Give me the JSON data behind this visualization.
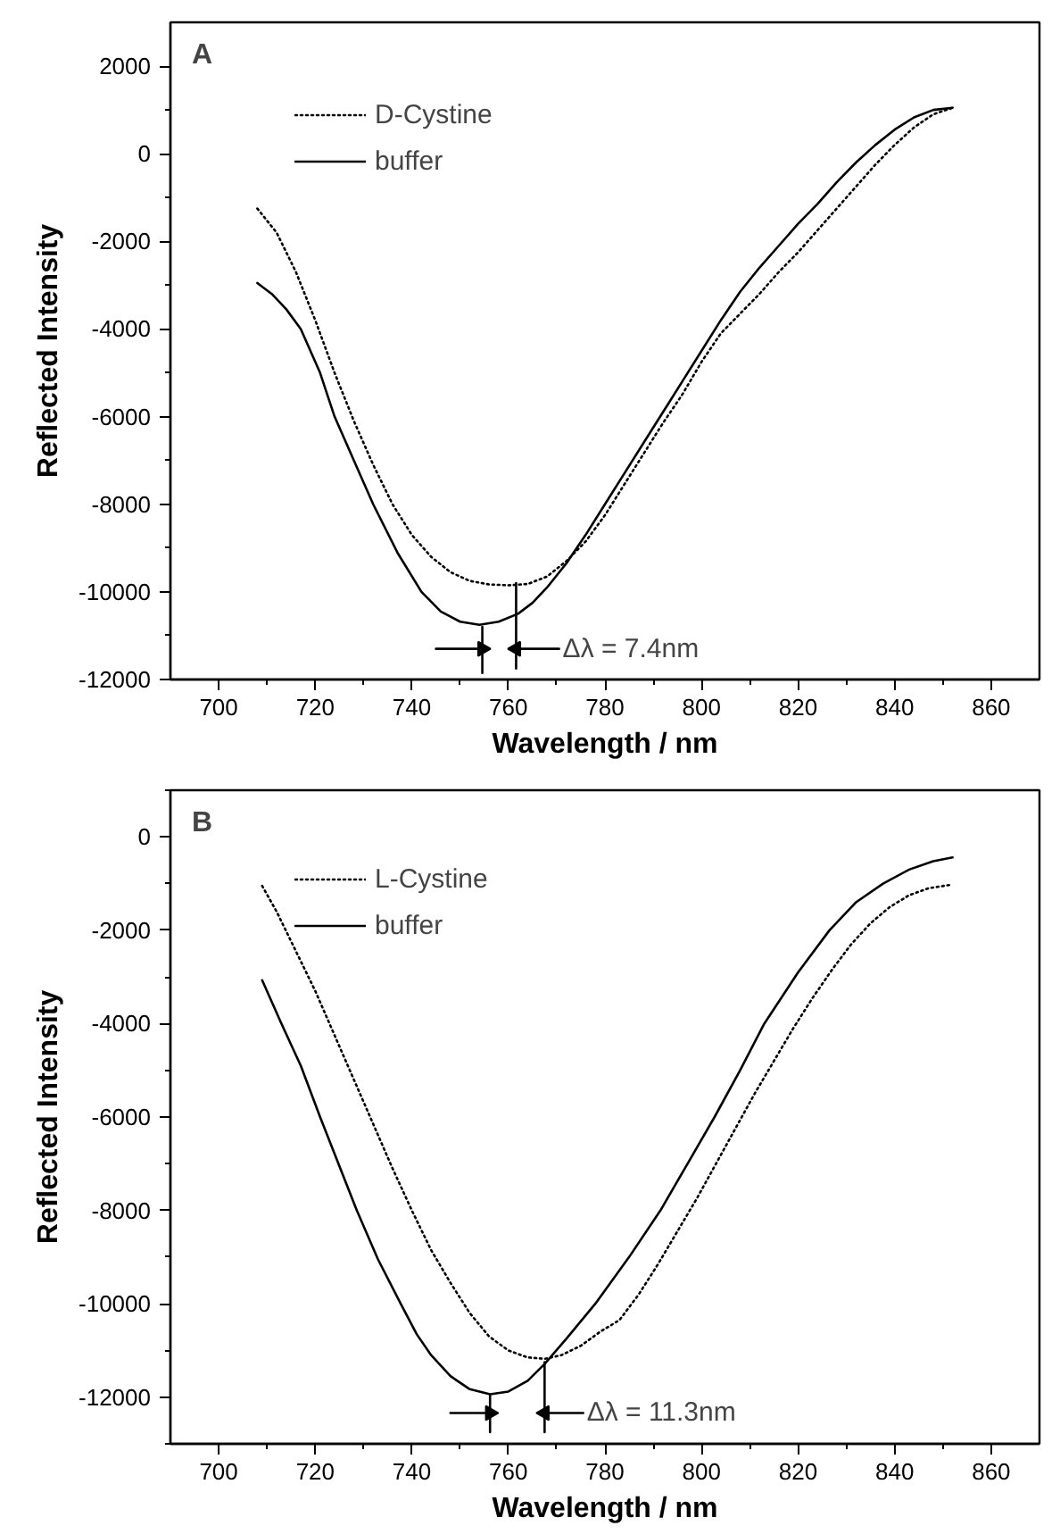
{
  "chart_data": [
    {
      "type": "line",
      "title": "A",
      "xlabel": "Wavelength / nm",
      "ylabel": "Reflected Intensity",
      "xlim": [
        690,
        870
      ],
      "ylim": [
        -12000,
        3000
      ],
      "xticks": [
        700,
        {
          "value": 710,
          "label": null
        },
        720,
        {
          "value": 730,
          "label": null
        },
        740,
        {
          "value": 750,
          "label": null
        },
        760,
        {
          "value": 770,
          "label": null
        },
        780,
        {
          "value": 790,
          "label": null
        },
        800,
        {
          "value": 810,
          "label": null
        },
        820,
        {
          "value": 830,
          "label": null
        },
        840,
        {
          "value": 850,
          "label": null
        },
        860
      ],
      "yticks": [
        -12000,
        {
          "value": -11000,
          "label": null
        },
        -10000,
        {
          "value": -9000,
          "label": null
        },
        -8000,
        {
          "value": -7000,
          "label": null
        },
        -6000,
        {
          "value": -5000,
          "label": null
        },
        -4000,
        {
          "value": -3000,
          "label": null
        },
        -2000,
        {
          "value": -1000,
          "label": null
        },
        0,
        {
          "value": 1000,
          "label": null
        },
        2000
      ],
      "grid": false,
      "legend": "top left",
      "marker": "none",
      "series": [
        {
          "name": "D-Cystine",
          "color": "#000000",
          "line_style": "dotted",
          "x": [
            708,
            712,
            716,
            720,
            724,
            728,
            732,
            736,
            740,
            744,
            748,
            752,
            756,
            760,
            764,
            768,
            772,
            776,
            780,
            784,
            788,
            792,
            796,
            800,
            804,
            808,
            812,
            816,
            820,
            824,
            828,
            832,
            836,
            840,
            844,
            848,
            852
          ],
          "values": [
            -1250,
            -1800,
            -2700,
            -3800,
            -5000,
            -6100,
            -7100,
            -8000,
            -8700,
            -9200,
            -9550,
            -9750,
            -9830,
            -9850,
            -9820,
            -9650,
            -9300,
            -8850,
            -8250,
            -7550,
            -6850,
            -6150,
            -5500,
            -4750,
            -4100,
            -3650,
            -3200,
            -2700,
            -2250,
            -1750,
            -1250,
            -750,
            -250,
            200,
            600,
            900,
            1050
          ]
        },
        {
          "name": "buffer",
          "color": "#000000",
          "line_style": "solid",
          "x": [
            708,
            711,
            714,
            717,
            721,
            724,
            728,
            732,
            737,
            742,
            746,
            750,
            754,
            758,
            762,
            765,
            768,
            772,
            776,
            780,
            784,
            788,
            792,
            796,
            800,
            804,
            808,
            812,
            816,
            820,
            824,
            828,
            832,
            836,
            840,
            844,
            848,
            852
          ],
          "values": [
            -2950,
            -3200,
            -3550,
            -4000,
            -5000,
            -6000,
            -7000,
            -8000,
            -9100,
            -10000,
            -10450,
            -10680,
            -10750,
            -10680,
            -10500,
            -10250,
            -9900,
            -9350,
            -8700,
            -8000,
            -7300,
            -6600,
            -5900,
            -5200,
            -4500,
            -3800,
            -3150,
            -2600,
            -2100,
            -1600,
            -1150,
            -650,
            -200,
            200,
            550,
            830,
            1000,
            1050
          ]
        },
        {
          "color": "#000000",
          "line_style": "solid",
          "x": [
            754.6,
            754.6
          ],
          "values": [
            -10800,
            -11850
          ]
        },
        {
          "color": "#000000",
          "line_style": "solid",
          "x": [
            761.6,
            761.6
          ],
          "values": [
            -9800,
            -11750
          ]
        },
        {
          "color": "#000000",
          "line_style": "solid",
          "marker": "triangle",
          "x": [
            745,
            754.6
          ],
          "values": [
            -11300,
            -11300
          ]
        },
        {
          "color": "#000000",
          "line_style": "solid",
          "marker": "triangle",
          "x": [
            761.6,
            770.5
          ],
          "values": [
            -11300,
            -11300
          ]
        }
      ],
      "annotations": [
        "Δλ = 7.4nm"
      ]
    },
    {
      "type": "line",
      "title": "B",
      "xlabel": "Wavelength / nm",
      "ylabel": "Reflected Intensity",
      "xlim": [
        690,
        870
      ],
      "ylim": [
        -13000,
        1000
      ],
      "xticks": [
        700,
        {
          "value": 710,
          "label": null
        },
        720,
        {
          "value": 730,
          "label": null
        },
        740,
        {
          "value": 750,
          "label": null
        },
        760,
        {
          "value": 770,
          "label": null
        },
        780,
        {
          "value": 790,
          "label": null
        },
        800,
        {
          "value": 810,
          "label": null
        },
        820,
        {
          "value": 830,
          "label": null
        },
        840,
        {
          "value": 850,
          "label": null
        },
        860
      ],
      "yticks": [
        {
          "value": -13000,
          "label": null
        },
        -12000,
        {
          "value": -11000,
          "label": null
        },
        -10000,
        {
          "value": -9000,
          "label": null
        },
        -8000,
        {
          "value": -7000,
          "label": null
        },
        -6000,
        {
          "value": -5000,
          "label": null
        },
        -4000,
        {
          "value": -3000,
          "label": null
        },
        -2000,
        {
          "value": -1000,
          "label": null
        },
        0,
        {
          "value": 1000,
          "label": null
        }
      ],
      "grid": false,
      "legend": "top left",
      "marker": "none",
      "series": [
        {
          "name": "L-Cystine",
          "color": "#000000",
          "line_style": "dotted",
          "x": [
            709,
            712,
            716,
            720,
            724,
            728,
            732,
            736,
            740,
            744,
            748,
            752,
            756,
            760,
            764,
            767.5,
            771,
            775,
            779,
            783,
            787,
            791,
            795,
            799,
            803,
            807,
            811,
            815,
            819,
            823,
            827,
            831,
            835,
            839,
            843,
            847,
            852
          ],
          "values": [
            -1050,
            -1600,
            -2450,
            -3300,
            -4250,
            -5200,
            -6150,
            -7100,
            -8000,
            -8850,
            -9550,
            -10200,
            -10700,
            -11000,
            -11150,
            -11180,
            -11100,
            -10900,
            -10600,
            -10350,
            -9800,
            -9150,
            -8450,
            -7750,
            -7000,
            -6250,
            -5500,
            -4800,
            -4100,
            -3450,
            -2850,
            -2300,
            -1850,
            -1500,
            -1250,
            -1100,
            -1020
          ]
        },
        {
          "name": "buffer",
          "color": "#000000",
          "line_style": "solid",
          "x": [
            709,
            713,
            717,
            721,
            725,
            728.6,
            733,
            737.7,
            741,
            744,
            748,
            752,
            756.2,
            760,
            764,
            767.5,
            772,
            778,
            785,
            791.5,
            797,
            802.7,
            808,
            813,
            820,
            826.5,
            832,
            837.6,
            843,
            848,
            852
          ],
          "values": [
            -3070,
            -4000,
            -4900,
            -6000,
            -7050,
            -8000,
            -9050,
            -10000,
            -10650,
            -11100,
            -11550,
            -11830,
            -11940,
            -11880,
            -11650,
            -11290,
            -10750,
            -10000,
            -9000,
            -8000,
            -7020,
            -6000,
            -5000,
            -4000,
            -2900,
            -2000,
            -1400,
            -1000,
            -700,
            -520,
            -440
          ]
        },
        {
          "color": "#000000",
          "line_style": "solid",
          "x": [
            756.2,
            756.2
          ],
          "values": [
            -11950,
            -12750
          ]
        },
        {
          "color": "#000000",
          "line_style": "solid",
          "x": [
            767.5,
            767.5
          ],
          "values": [
            -11250,
            -12750
          ]
        },
        {
          "color": "#000000",
          "line_style": "solid",
          "marker": "triangle",
          "x": [
            748,
            756.2
          ],
          "values": [
            -12340,
            -12340
          ]
        },
        {
          "color": "#000000",
          "line_style": "solid",
          "marker": "triangle",
          "x": [
            767.5,
            775.5
          ],
          "values": [
            -12340,
            -12340
          ]
        }
      ],
      "annotations": [
        "Δλ = 11.3nm"
      ]
    }
  ]
}
